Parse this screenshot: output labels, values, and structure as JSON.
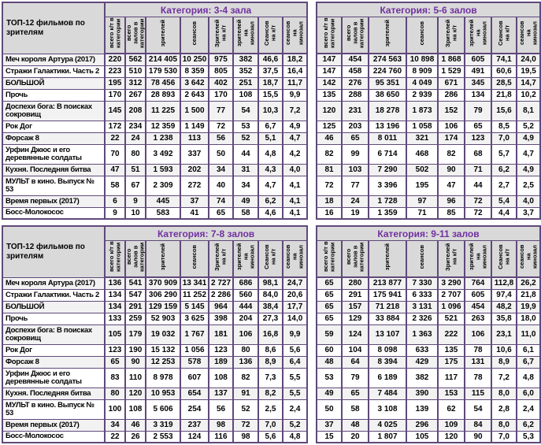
{
  "corner_label": "ТОП-12 фильмов по зрителям",
  "columns": [
    "всего к/т в категории",
    "всего залов в категории",
    "зрителей",
    "сеансов",
    "Зрителей на к/т",
    "зрителей на кинозал",
    "Сеансов на к/т",
    "сеансов на кинозал"
  ],
  "films": [
    "Меч короля Артура (2017)",
    "Стражи Галактики. Часть 2",
    "БОЛЬШОЙ",
    "Прочь",
    "Доспехи бога: В поисках сокровищ",
    "Рок Дог",
    "Форсаж 8",
    "Урфин Джюс и его деревянные солдаты",
    "Кухня. Последняя битва",
    "МУЛЬТ в кино. Выпуск № 53",
    "Время первых (2017)",
    "Босс-Молокосос"
  ],
  "tall_rows": [
    4,
    7,
    9
  ],
  "layout": {
    "left_cols": [
      130,
      26,
      26,
      44,
      36,
      31,
      32,
      31,
      31
    ],
    "right_cols": [
      32,
      34,
      48,
      40,
      34,
      34,
      32,
      30
    ]
  },
  "colors": {
    "border": "#5F497A",
    "title_text": "#7030A0",
    "header_bg": "#D9D9D9",
    "banded_row_bg": "#F2F2F2"
  },
  "tables": [
    {
      "key": "3-4",
      "title": "Категория: 3-4 зала",
      "show_names": true,
      "rows": [
        [
          "220",
          "562",
          "214 405",
          "10 250",
          "975",
          "382",
          "46,6",
          "18,2"
        ],
        [
          "223",
          "510",
          "179 530",
          "8 359",
          "805",
          "352",
          "37,5",
          "16,4"
        ],
        [
          "195",
          "312",
          "78 456",
          "3 642",
          "402",
          "251",
          "18,7",
          "11,7"
        ],
        [
          "170",
          "267",
          "28 893",
          "2 643",
          "170",
          "108",
          "15,5",
          "9,9"
        ],
        [
          "145",
          "208",
          "11 225",
          "1 500",
          "77",
          "54",
          "10,3",
          "7,2"
        ],
        [
          "172",
          "234",
          "12 359",
          "1 149",
          "72",
          "53",
          "6,7",
          "4,9"
        ],
        [
          "22",
          "24",
          "1 238",
          "113",
          "56",
          "52",
          "5,1",
          "4,7"
        ],
        [
          "70",
          "80",
          "3 492",
          "337",
          "50",
          "44",
          "4,8",
          "4,2"
        ],
        [
          "47",
          "51",
          "1 593",
          "202",
          "34",
          "31",
          "4,3",
          "4,0"
        ],
        [
          "58",
          "67",
          "2 309",
          "272",
          "40",
          "34",
          "4,7",
          "4,1"
        ],
        [
          "6",
          "9",
          "445",
          "37",
          "74",
          "49",
          "6,2",
          "4,1"
        ],
        [
          "9",
          "10",
          "583",
          "41",
          "65",
          "58",
          "4,6",
          "4,1"
        ]
      ]
    },
    {
      "key": "5-6",
      "title": "Категория: 5-6 залов",
      "show_names": false,
      "rows": [
        [
          "147",
          "454",
          "274 563",
          "10 898",
          "1 868",
          "605",
          "74,1",
          "24,0"
        ],
        [
          "147",
          "458",
          "224 760",
          "8 909",
          "1 529",
          "491",
          "60,6",
          "19,5"
        ],
        [
          "142",
          "276",
          "95 351",
          "4 049",
          "671",
          "345",
          "28,5",
          "14,7"
        ],
        [
          "135",
          "288",
          "38 650",
          "2 939",
          "286",
          "134",
          "21,8",
          "10,2"
        ],
        [
          "120",
          "231",
          "18 278",
          "1 873",
          "152",
          "79",
          "15,6",
          "8,1"
        ],
        [
          "125",
          "203",
          "13 196",
          "1 058",
          "106",
          "65",
          "8,5",
          "5,2"
        ],
        [
          "46",
          "65",
          "8 011",
          "321",
          "174",
          "123",
          "7,0",
          "4,9"
        ],
        [
          "82",
          "99",
          "6 714",
          "468",
          "82",
          "68",
          "5,7",
          "4,7"
        ],
        [
          "81",
          "103",
          "7 290",
          "502",
          "90",
          "71",
          "6,2",
          "4,9"
        ],
        [
          "72",
          "77",
          "3 396",
          "195",
          "47",
          "44",
          "2,7",
          "2,5"
        ],
        [
          "18",
          "24",
          "1 728",
          "97",
          "96",
          "72",
          "5,4",
          "4,0"
        ],
        [
          "16",
          "19",
          "1 359",
          "71",
          "85",
          "72",
          "4,4",
          "3,7"
        ]
      ]
    },
    {
      "key": "7-8",
      "title": "Категория: 7-8 залов",
      "show_names": true,
      "rows": [
        [
          "136",
          "541",
          "370 909",
          "13 341",
          "2 727",
          "686",
          "98,1",
          "24,7"
        ],
        [
          "134",
          "547",
          "306 290",
          "11 252",
          "2 286",
          "560",
          "84,0",
          "20,6"
        ],
        [
          "134",
          "291",
          "129 159",
          "5 145",
          "964",
          "444",
          "38,4",
          "17,7"
        ],
        [
          "133",
          "259",
          "52 903",
          "3 625",
          "398",
          "204",
          "27,3",
          "14,0"
        ],
        [
          "105",
          "179",
          "19 032",
          "1 767",
          "181",
          "106",
          "16,8",
          "9,9"
        ],
        [
          "123",
          "190",
          "15 132",
          "1 056",
          "123",
          "80",
          "8,6",
          "5,6"
        ],
        [
          "65",
          "90",
          "12 253",
          "578",
          "189",
          "136",
          "8,9",
          "6,4"
        ],
        [
          "83",
          "110",
          "8 978",
          "607",
          "108",
          "82",
          "7,3",
          "5,5"
        ],
        [
          "80",
          "120",
          "10 953",
          "654",
          "137",
          "91",
          "8,2",
          "5,5"
        ],
        [
          "100",
          "108",
          "5 606",
          "254",
          "56",
          "52",
          "2,5",
          "2,4"
        ],
        [
          "34",
          "46",
          "3 319",
          "237",
          "98",
          "72",
          "7,0",
          "5,2"
        ],
        [
          "22",
          "26",
          "2 553",
          "124",
          "116",
          "98",
          "5,6",
          "4,8"
        ]
      ]
    },
    {
      "key": "9-11",
      "title": "Категория: 9-11 залов",
      "show_names": false,
      "rows": [
        [
          "65",
          "280",
          "213 877",
          "7 330",
          "3 290",
          "764",
          "112,8",
          "26,2"
        ],
        [
          "65",
          "291",
          "175 941",
          "6 333",
          "2 707",
          "605",
          "97,4",
          "21,8"
        ],
        [
          "65",
          "157",
          "71 218",
          "3 131",
          "1 096",
          "454",
          "48,2",
          "19,9"
        ],
        [
          "65",
          "129",
          "33 884",
          "2 326",
          "521",
          "263",
          "35,8",
          "18,0"
        ],
        [
          "59",
          "124",
          "13 107",
          "1 363",
          "222",
          "106",
          "23,1",
          "11,0"
        ],
        [
          "60",
          "104",
          "8 098",
          "633",
          "135",
          "78",
          "10,6",
          "6,1"
        ],
        [
          "48",
          "64",
          "8 394",
          "429",
          "175",
          "131",
          "8,9",
          "6,7"
        ],
        [
          "53",
          "79",
          "6 189",
          "382",
          "117",
          "78",
          "7,2",
          "4,8"
        ],
        [
          "49",
          "65",
          "7 484",
          "390",
          "153",
          "115",
          "8,0",
          "6,0"
        ],
        [
          "50",
          "58",
          "3 108",
          "139",
          "62",
          "54",
          "2,8",
          "2,4"
        ],
        [
          "37",
          "48",
          "4 025",
          "296",
          "109",
          "84",
          "8,0",
          "6,2"
        ],
        [
          "15",
          "20",
          "1 807",
          "105",
          "120",
          "90",
          "7,0",
          "5,3"
        ]
      ]
    }
  ]
}
